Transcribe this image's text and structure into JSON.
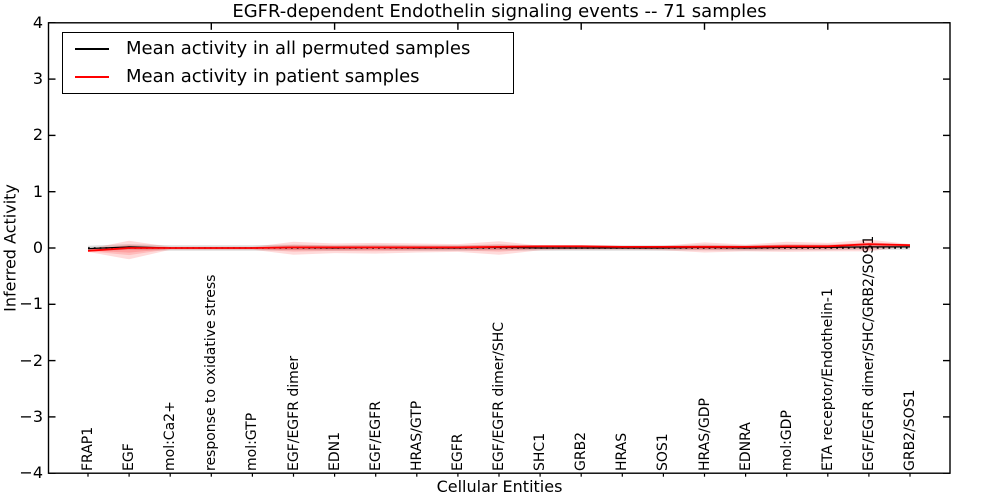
{
  "title": "EGFR-dependent Endothelin signaling events -- 71 samples",
  "legend": {
    "items": [
      {
        "label": "Mean activity in all permuted samples",
        "color": "#000000"
      },
      {
        "label": "Mean activity in patient samples",
        "color": "#ff0000"
      }
    ]
  },
  "colors": {
    "patient_line": "#ff0000",
    "permuted_line": "#000000",
    "zero_line": "#000000",
    "patient_band": "#ff0000",
    "permuted_band": "#000000",
    "axis": "#000000",
    "background": "#ffffff"
  },
  "chart_data": {
    "type": "area",
    "title": "EGFR-dependent Endothelin signaling events -- 71 samples",
    "xlabel": "Cellular Entities",
    "ylabel": "Inferred Activity",
    "ylim": [
      -4,
      4
    ],
    "ytick_values": [
      4,
      3,
      2,
      1,
      0,
      -1,
      -2,
      -3,
      -4
    ],
    "ytick_labels": [
      "4",
      "3",
      "2",
      "1",
      "0",
      "−1",
      "−2",
      "−3",
      "−4"
    ],
    "grid": false,
    "legend_position": "upper left",
    "zero_reference_line": 0,
    "categories": [
      "FRAP1",
      "EGF",
      "mol:Ca2+",
      "response to oxidative stress",
      "mol:GTP",
      "EGF/EGFR dimer",
      "EDN1",
      "EGF/EGFR",
      "HRAS/GTP",
      "EGFR",
      "EGF/EGFR dimer/SHC",
      "SHC1",
      "GRB2",
      "HRAS",
      "SOS1",
      "HRAS/GDP",
      "EDNRA",
      "mol:GDP",
      "ETA receptor/Endothelin-1",
      "EGF/EGFR dimer/SHC/GRB2/SOS1",
      "GRB2/SOS1"
    ],
    "series": [
      {
        "name": "Mean activity in all permuted samples",
        "values": [
          -0.01,
          0.02,
          0.0,
          0.0,
          0.0,
          0.01,
          0.0,
          0.01,
          0.0,
          0.0,
          0.01,
          0.0,
          0.0,
          0.0,
          0.0,
          0.01,
          0.0,
          0.01,
          0.01,
          0.02,
          0.02
        ]
      },
      {
        "name": "Mean activity in patient samples",
        "values": [
          -0.05,
          0.0,
          0.0,
          0.0,
          0.0,
          0.01,
          0.01,
          0.01,
          0.01,
          0.01,
          0.02,
          0.03,
          0.03,
          0.02,
          0.02,
          0.02,
          0.02,
          0.03,
          0.03,
          0.07,
          0.05
        ]
      },
      {
        "name": "Patient spread upper",
        "values": [
          -0.02,
          0.13,
          0.02,
          0.02,
          0.02,
          0.11,
          0.08,
          0.09,
          0.08,
          0.07,
          0.12,
          0.04,
          0.03,
          0.03,
          0.04,
          0.1,
          0.06,
          0.11,
          0.09,
          0.15,
          0.07
        ]
      },
      {
        "name": "Patient spread lower",
        "values": [
          -0.07,
          -0.2,
          -0.03,
          -0.03,
          -0.03,
          -0.12,
          -0.09,
          -0.1,
          -0.08,
          -0.07,
          -0.12,
          -0.04,
          -0.03,
          -0.03,
          -0.04,
          -0.08,
          -0.06,
          -0.07,
          -0.06,
          -0.06,
          0.03
        ]
      }
    ],
    "permuted_band_halfwidth": 0.05
  }
}
